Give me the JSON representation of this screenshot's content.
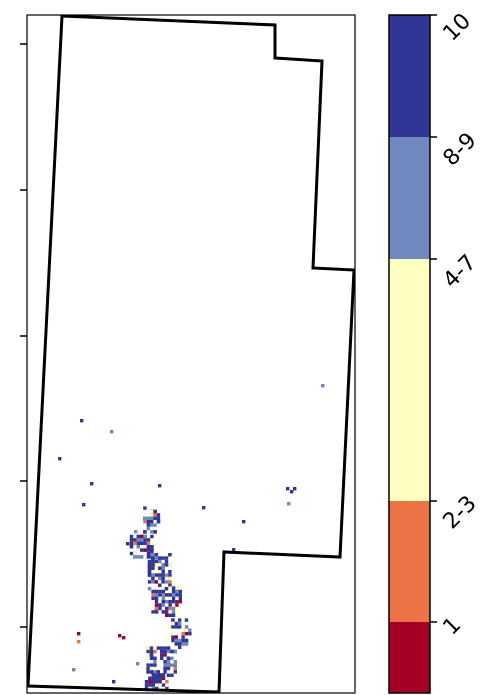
{
  "map": {
    "legend": {
      "classes": [
        {
          "label": "10",
          "color": "#313695"
        },
        {
          "label": "8-9",
          "color": "#7088c0"
        },
        {
          "label": "4-7",
          "color": "#ffffc0"
        },
        {
          "label": "2-3",
          "color": "#ec7346"
        },
        {
          "label": "1",
          "color": "#a40026"
        }
      ]
    },
    "colors": {
      "outline": "#000000",
      "frame": "#000000",
      "background": "#ffffff"
    },
    "pixel_classes": {
      "10": "#313695",
      "8-9": "#7088c0",
      "4-7": "#ffffc0",
      "2-3": "#ec7346",
      "1": "#a40026"
    }
  }
}
